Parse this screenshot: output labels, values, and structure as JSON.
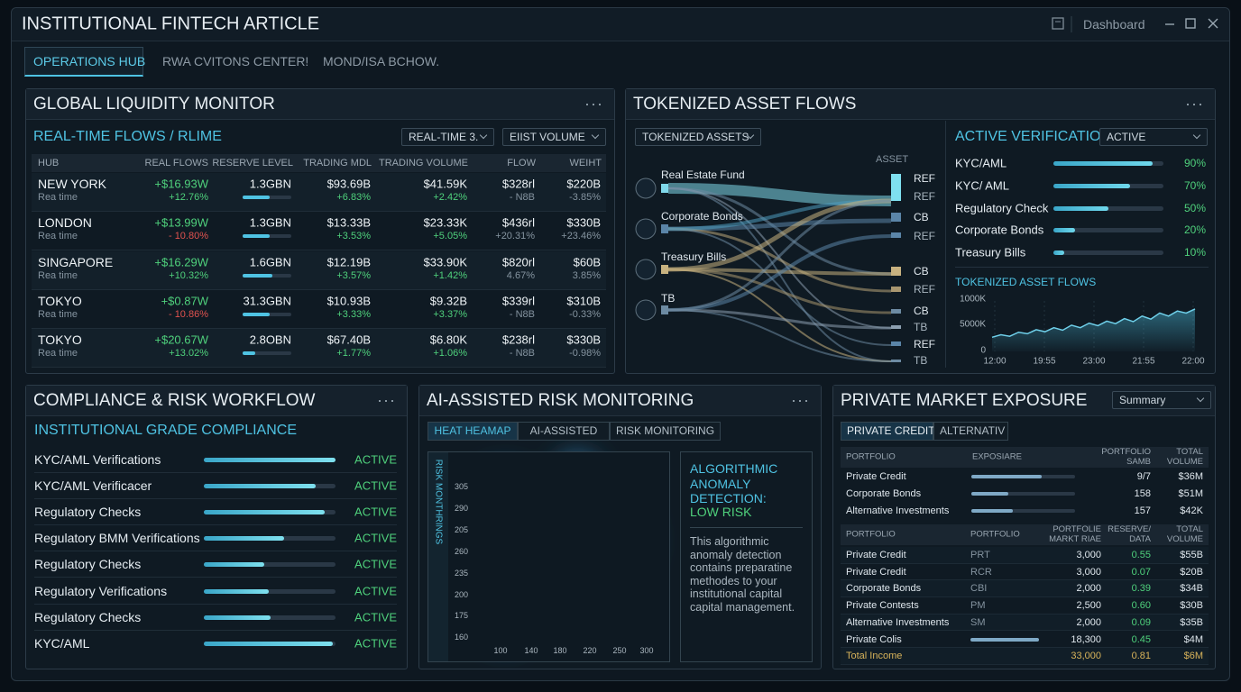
{
  "window": {
    "title": "INSTITUTIONAL FINTECH ARTICLE",
    "menu": "Dashboard"
  },
  "tabs": [
    "OPERATIONS HUB",
    "RWA CVITONS CENTER!",
    "MOND/ISA BCHOW."
  ],
  "liquidity": {
    "title": "GLOBAL LIQUIDITY MONITOR",
    "subtitle": "REAL-TIME FLOWS / RLIME",
    "filters": [
      "REAL-TIME 3.",
      "EIIST VOLUME"
    ],
    "columns": [
      "HUB",
      "REAL FLOWS",
      "RESERVE LEVEL",
      "TRADING MDL",
      "TRADING VOLUME",
      "FLOW",
      "WEIHT"
    ],
    "rows": [
      {
        "hub": "NEW YORK",
        "sub": "Rea time",
        "flow": "+$16.93W",
        "flow_change": "+12.76%",
        "reserve": "1.3GBN",
        "reserve_level": 55,
        "mdl": "$93.69B",
        "mdl_change": "+6.83%",
        "volume": "$41.59K",
        "volume_change": "+2.42%",
        "flow2": "$328rl",
        "flow2_sub": "- N8B",
        "weight": "$220B",
        "weight_sub": "-3.85%"
      },
      {
        "hub": "LONDON",
        "sub": "Rea time",
        "flow": "+$13.99W",
        "flow_change": "- 10.80%",
        "reserve": "1.3GBN",
        "reserve_level": 55,
        "mdl": "$13.33B",
        "mdl_change": "+3.53%",
        "volume": "$23.33K",
        "volume_change": "+5.05%",
        "flow2": "$436rl",
        "flow2_sub": "+20.31%",
        "weight": "$330B",
        "weight_sub": "+23.46%"
      },
      {
        "hub": "SINGAPORE",
        "sub": "Rea time",
        "flow": "+$16.29W",
        "flow_change": "+10.32%",
        "reserve": "1.6GBN",
        "reserve_level": 62,
        "mdl": "$12.19B",
        "mdl_change": "+3.57%",
        "volume": "$33.90K",
        "volume_change": "+1.42%",
        "flow2": "$820rl",
        "flow2_sub": "4.67%",
        "weight": "$60B",
        "weight_sub": "3.85%"
      },
      {
        "hub": "TOKYO",
        "sub": "Rea time",
        "flow": "+$0.87W",
        "flow_change": "- 10.86%",
        "reserve": "31.3GBN",
        "reserve_level": 55,
        "mdl": "$10.93B",
        "mdl_change": "+3.33%",
        "volume": "$9.32B",
        "volume_change": "+3.37%",
        "flow2": "$339rl",
        "flow2_sub": "- N8B",
        "weight": "$310B",
        "weight_sub": "-0.33%"
      },
      {
        "hub": "TOKYO",
        "sub": "Rea time",
        "flow": "+$20.67W",
        "flow_change": "+13.02%",
        "reserve": "2.8OBN",
        "reserve_level": 25,
        "mdl": "$67.40B",
        "mdl_change": "+1.77%",
        "volume": "$6.80K",
        "volume_change": "+1.06%",
        "flow2": "$238rl",
        "flow2_sub": "- N8B",
        "weight": "$330B",
        "weight_sub": "-0.98%"
      }
    ]
  },
  "tokenized": {
    "title": "TOKENIZED ASSET FLOWS",
    "dropdown": "TOKENIZED ASSETS",
    "asset_label": "ASSET",
    "sources": [
      "Real Estate Fund",
      "Corporate Bonds",
      "Treasury Bills",
      "TB"
    ],
    "targets": [
      "REF",
      "REF",
      "CB",
      "REF",
      "CB",
      "REF",
      "CB",
      "TB",
      "REF",
      "TB"
    ]
  },
  "verification": {
    "title": "ACTIVE VERIFICATION",
    "dropdown": "ACTIVE",
    "items": [
      {
        "label": "KYC/AML",
        "value": 90,
        "value_label": "90%"
      },
      {
        "label": "KYC/ AML",
        "value": 70,
        "value_label": "70%"
      },
      {
        "label": "Regulatory Check",
        "value": 50,
        "value_label": "50%"
      },
      {
        "label": "Corporate Bonds",
        "value": 20,
        "value_label": "20%"
      },
      {
        "label": "Treasury Bills",
        "value": 10,
        "value_label": "10%"
      }
    ],
    "chart": {
      "title": "TOKENIZED ASSET FLOWS",
      "y_labels": [
        "1000K",
        "5000K",
        "0"
      ],
      "x_labels": [
        "12:00",
        "19:55",
        "23:00",
        "21:55",
        "22:00"
      ],
      "ylim": [
        0,
        1000
      ],
      "values": [
        280,
        330,
        300,
        380,
        350,
        430,
        390,
        470,
        420,
        520,
        470,
        560,
        510,
        600,
        550,
        650,
        590,
        700,
        640,
        760,
        700,
        800,
        760,
        840
      ]
    }
  },
  "compliance": {
    "title": "COMPLIANCE & RISK WORKFLOW",
    "subtitle": "INSTITUTIONAL GRADE COMPLIANCE",
    "rows": [
      {
        "label": "KYC/AML Verifications",
        "status": "ACTIVE",
        "progress": 100
      },
      {
        "label": "KYC/AML Verificacer",
        "status": "ACTIVE",
        "progress": 85
      },
      {
        "label": "Regulatory Checks",
        "status": "ACTIVE",
        "progress": 92
      },
      {
        "label": "Regulatory BMM Verifications",
        "status": "ACTIVE",
        "progress": 61
      },
      {
        "label": "Regulatory Checks",
        "status": "ACTIVE",
        "progress": 46
      },
      {
        "label": "Regulatory Verifications",
        "status": "ACTIVE",
        "progress": 49
      },
      {
        "label": "Regulatory Checks",
        "status": "ACTIVE",
        "progress": 51
      },
      {
        "label": "KYC/AML",
        "status": "ACTIVE",
        "progress": 98
      }
    ]
  },
  "risk": {
    "title": "AI-ASSISTED RISK MONITORING",
    "tabs": [
      "HEAT HEAMAP",
      "AI-ASSISTED",
      "RISK MONITORING"
    ],
    "axis_label": "RISK MONTHRINGS",
    "y_labels": [
      "305",
      "290",
      "205",
      "260",
      "235",
      "200",
      "175",
      "160"
    ],
    "x_labels": [
      "100",
      "140",
      "180",
      "220",
      "250",
      "300"
    ],
    "insight": {
      "heading": "ALGORITHMIC ANOMALY DETECTION:",
      "status": "LOW RISK",
      "body": "This algorithmic anomaly detection contains preparatine methodes to your institutional capital capital management."
    }
  },
  "exposure": {
    "title": "PRIVATE MARKET EXPOSURE",
    "dropdown": "Summary",
    "tabs": [
      "PRIVATE CREDIT",
      "ALTERNATIV"
    ],
    "table1": {
      "columns": [
        "PORTFOLIO",
        "EXPOSIARE",
        "PORTFOLIO SAMB",
        "TOTAL VOLUME"
      ],
      "rows": [
        {
          "name": "Private Credit",
          "exposure": 68,
          "value": "9/7",
          "volume": "$36M"
        },
        {
          "name": "Corporate Bonds",
          "exposure": 36,
          "value": "158",
          "volume": "$51M"
        },
        {
          "name": "Alternative Investments",
          "exposure": 40,
          "value": "157",
          "volume": "$42K"
        }
      ]
    },
    "table2": {
      "columns": [
        "PORTFOLIO",
        "PORTFOLIO",
        "PORTFOLIE MARKT RIAE",
        "RESERVE/ DATA",
        "TOTAL VOLUME"
      ],
      "rows": [
        {
          "name": "Private Credit",
          "code": "PRT",
          "amount": "3,000",
          "rate": "0.55",
          "volume": "$55B"
        },
        {
          "name": "Private Credit",
          "code": "RCR",
          "amount": "3,000",
          "rate": "0.07",
          "volume": "$20B"
        },
        {
          "name": "Corporate Bonds",
          "code": "CBI",
          "amount": "2,000",
          "rate": "0.39",
          "volume": "$34B"
        },
        {
          "name": "Private Contests",
          "code": "PM",
          "amount": "2,500",
          "rate": "0.60",
          "volume": "$30B"
        },
        {
          "name": "Alternative Investments",
          "code": "SM",
          "amount": "2,000",
          "rate": "0.09",
          "volume": "$35B"
        },
        {
          "name": "Private Colis",
          "amount": "18,300",
          "rate": "0.45",
          "volume": "$4M"
        },
        {
          "name": "Total Income",
          "amount": "33,000",
          "rate": "0.81",
          "volume": "$6M"
        }
      ]
    }
  }
}
